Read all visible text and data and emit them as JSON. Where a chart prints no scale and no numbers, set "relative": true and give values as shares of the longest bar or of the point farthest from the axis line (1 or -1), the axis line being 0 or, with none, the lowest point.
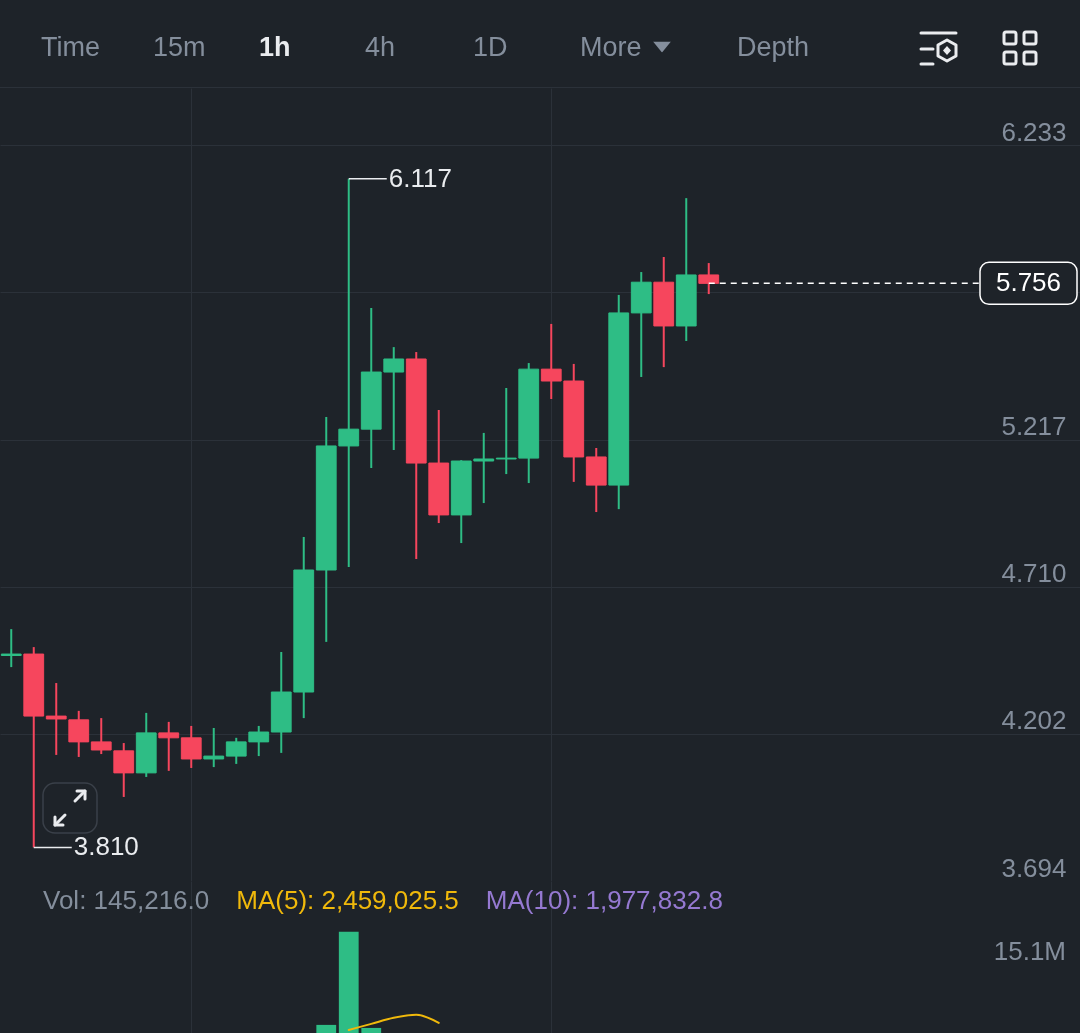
{
  "chart_data": [
    {
      "type": "candlestick",
      "categories": [
        null,
        null,
        null,
        null,
        null,
        null,
        null,
        null,
        null,
        null,
        null,
        null,
        null,
        null,
        null,
        null,
        null,
        null,
        null,
        null,
        null,
        null,
        null,
        null,
        null,
        null,
        null,
        null,
        null,
        null,
        null,
        null,
        null,
        null,
        null,
        null,
        null,
        null,
        null,
        null,
        null,
        null,
        null,
        null,
        null,
        null,
        null,
        null
      ],
      "ohlc": [
        [
          4.472,
          4.563,
          4.432,
          4.477
        ],
        [
          4.477,
          4.501,
          3.81,
          4.263
        ],
        [
          4.263,
          4.377,
          4.129,
          4.253
        ],
        [
          4.25,
          4.281,
          4.122,
          4.174
        ],
        [
          4.174,
          4.256,
          4.132,
          4.146
        ],
        [
          4.143,
          4.17,
          3.984,
          4.067
        ],
        [
          4.067,
          4.274,
          4.053,
          4.205
        ],
        [
          4.205,
          4.243,
          4.074,
          4.188
        ],
        [
          4.188,
          4.229,
          4.084,
          4.115
        ],
        [
          4.115,
          4.222,
          4.087,
          4.125
        ],
        [
          4.125,
          4.188,
          4.098,
          4.174
        ],
        [
          4.174,
          4.229,
          4.125,
          4.208
        ],
        [
          4.208,
          4.484,
          4.136,
          4.346
        ],
        [
          4.346,
          4.881,
          4.256,
          4.767
        ],
        [
          4.767,
          5.295,
          4.519,
          5.195
        ],
        [
          5.195,
          6.117,
          4.777,
          5.253
        ],
        [
          5.253,
          5.671,
          5.119,
          5.45
        ],
        [
          5.45,
          5.536,
          5.181,
          5.495
        ],
        [
          5.495,
          5.519,
          4.805,
          5.136
        ],
        [
          5.136,
          5.319,
          4.929,
          4.957
        ],
        [
          4.957,
          5.146,
          4.86,
          5.143
        ],
        [
          5.143,
          5.24,
          4.998,
          5.15
        ],
        [
          5.15,
          5.395,
          5.098,
          5.153
        ],
        [
          5.153,
          5.481,
          5.067,
          5.46
        ],
        [
          5.46,
          5.616,
          5.357,
          5.419
        ],
        [
          5.419,
          5.478,
          5.071,
          5.157
        ],
        [
          5.157,
          5.188,
          4.967,
          5.06
        ],
        [
          5.06,
          5.716,
          4.977,
          5.654
        ],
        [
          5.654,
          5.795,
          5.433,
          5.76
        ],
        [
          5.76,
          5.847,
          5.467,
          5.609
        ],
        [
          5.609,
          6.05,
          5.557,
          5.785
        ],
        [
          5.785,
          5.826,
          5.719,
          5.756
        ],
        null,
        null,
        null,
        null,
        null,
        null,
        null,
        null,
        null,
        null,
        null,
        null,
        null,
        null,
        null,
        null
      ],
      "colors": [
        "#2ebd85",
        "#f6465d",
        "#f6465d",
        "#f6465d",
        "#f6465d",
        "#f6465d",
        "#2ebd85",
        "#f6465d",
        "#f6465d",
        "#2ebd85",
        "#2ebd85",
        "#2ebd85",
        "#2ebd85",
        "#2ebd85",
        "#2ebd85",
        "#2ebd85",
        "#2ebd85",
        "#2ebd85",
        "#f6465d",
        "#f6465d",
        "#2ebd85",
        "#2ebd85",
        "#2ebd85",
        "#2ebd85",
        "#f6465d",
        "#f6465d",
        "#f6465d",
        "#2ebd85",
        "#2ebd85",
        "#f6465d",
        "#2ebd85",
        "#f6465d",
        null,
        null,
        null,
        null,
        null,
        null,
        null,
        null,
        null,
        null,
        null,
        null,
        null,
        null,
        null,
        null
      ],
      "ylim": [
        3.694,
        6.43
      ],
      "yticks": [
        6.233,
        {
          "value": 5.725,
          "label": null
        },
        5.217,
        {
          "value": 4.71,
          "label": "4.710"
        },
        4.202,
        3.694
      ],
      "grid": "y",
      "ref_lines": [
        {
          "axis": "y",
          "value": 5.756,
          "label": "5.756",
          "color": "#ffffff",
          "line_style": "dashed"
        }
      ],
      "annotations": [
        "Time",
        "15m",
        "1h",
        "4h",
        "1D",
        "More",
        "Depth",
        "6.117",
        "3.810"
      ]
    },
    {
      "type": "bar",
      "categories": [
        null,
        null,
        null,
        null,
        null,
        null,
        null,
        null,
        null,
        null,
        null,
        null,
        null,
        null,
        null,
        null,
        null,
        null,
        null,
        null,
        null,
        null,
        null,
        null,
        null,
        null,
        null,
        null,
        null,
        null,
        null,
        null,
        null,
        null,
        null,
        null,
        null,
        null,
        null,
        null,
        null,
        null,
        null,
        null,
        null,
        null,
        null,
        null
      ],
      "relative": true,
      "series": [
        {
          "colors": [
            null,
            null,
            null,
            null,
            null,
            null,
            null,
            null,
            null,
            null,
            null,
            null,
            null,
            null,
            "#2ebd85",
            "#2ebd85",
            "#2ebd85",
            null,
            null,
            null,
            null,
            null,
            null,
            null,
            null,
            null,
            null,
            null,
            null,
            null,
            null,
            null,
            null,
            null,
            null,
            null,
            null,
            null,
            null,
            null,
            null,
            null,
            null,
            null,
            null,
            null,
            null,
            null
          ],
          "values": [
            null,
            null,
            null,
            null,
            null,
            null,
            null,
            null,
            null,
            null,
            null,
            null,
            null,
            null,
            0.08,
            1,
            0.05,
            null,
            null,
            null,
            null,
            null,
            null,
            null,
            null,
            null,
            null,
            null,
            null,
            null,
            null,
            null,
            null,
            null,
            null,
            null,
            null,
            null,
            null,
            null,
            null,
            null,
            null,
            null,
            null,
            null,
            null,
            null
          ]
        },
        {
          "name": "MA(5): 2,459,025.5",
          "type": "line",
          "color": "#f0b90b",
          "values": [
            null,
            null,
            null,
            null,
            null,
            null,
            null,
            null,
            null,
            null,
            null,
            null,
            null,
            null,
            null,
            0.03,
            0.09,
            0.15,
            0.18,
            0.1,
            null,
            null,
            null,
            null,
            null,
            null,
            null,
            null,
            null,
            null,
            null,
            null,
            null,
            null,
            null,
            null,
            null,
            null,
            null,
            null,
            null,
            null,
            null,
            null,
            null,
            null,
            null,
            null
          ]
        },
        {
          "name": "MA(10): 1,977,832.8",
          "type": "line",
          "color": "#9579d1",
          "values": [
            null,
            null,
            null,
            null,
            null,
            null,
            null,
            null,
            null,
            null,
            null,
            null,
            null,
            null,
            null,
            null,
            null,
            null,
            null,
            null,
            null,
            null,
            null,
            null,
            null,
            null,
            null,
            null,
            null,
            null,
            null,
            null,
            null,
            null,
            null,
            null,
            null,
            null,
            null,
            null,
            null,
            null,
            null,
            null,
            null,
            null,
            null,
            null
          ]
        }
      ],
      "annotations": [
        "Vol: 145,216.0",
        "15.1M"
      ]
    }
  ]
}
